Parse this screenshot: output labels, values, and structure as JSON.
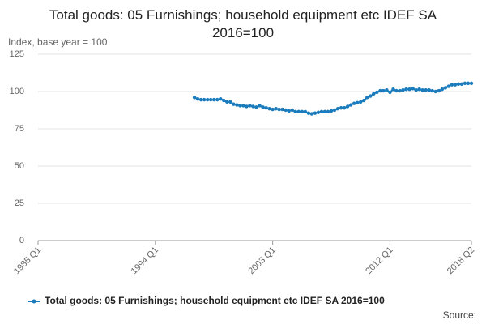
{
  "chart_data": {
    "type": "line",
    "title": "Total goods: 05 Furnishings; household equipment etc IDEF SA 2016=100",
    "y_label": "Index, base year = 100",
    "source": "Source:",
    "categories": [
      "1985 Q1",
      null,
      null,
      null,
      null,
      null,
      null,
      null,
      null,
      null,
      null,
      null,
      null,
      null,
      null,
      null,
      null,
      null,
      null,
      null,
      null,
      null,
      null,
      null,
      null,
      null,
      null,
      null,
      null,
      null,
      null,
      null,
      null,
      null,
      null,
      null,
      "1994 Q1",
      null,
      null,
      null,
      null,
      null,
      null,
      null,
      null,
      null,
      null,
      null,
      null,
      null,
      null,
      null,
      null,
      null,
      null,
      null,
      null,
      null,
      null,
      null,
      null,
      null,
      null,
      null,
      null,
      null,
      null,
      null,
      null,
      null,
      null,
      null,
      "2003 Q1",
      null,
      null,
      null,
      null,
      null,
      null,
      null,
      null,
      null,
      null,
      null,
      null,
      null,
      null,
      null,
      null,
      null,
      null,
      null,
      null,
      null,
      null,
      null,
      null,
      null,
      null,
      null,
      null,
      null,
      null,
      null,
      null,
      null,
      null,
      null,
      "2012 Q1",
      null,
      null,
      null,
      null,
      null,
      null,
      null,
      null,
      null,
      null,
      null,
      null,
      null,
      null,
      null,
      null,
      null,
      null,
      null,
      null,
      null,
      null,
      null,
      null,
      "2018 Q2"
    ],
    "series": [
      {
        "name": "Total goods: 05 Furnishings; household equipment etc IDEF SA 2016=100",
        "color": "#1a7bbd",
        "values": [
          null,
          null,
          null,
          null,
          null,
          null,
          null,
          null,
          null,
          null,
          null,
          null,
          null,
          null,
          null,
          null,
          null,
          null,
          null,
          null,
          null,
          null,
          null,
          null,
          null,
          null,
          null,
          null,
          null,
          null,
          null,
          null,
          null,
          null,
          null,
          null,
          null,
          null,
          null,
          null,
          null,
          null,
          null,
          null,
          null,
          null,
          null,
          null,
          96,
          95,
          94.5,
          94.5,
          94.5,
          94.5,
          94.5,
          94.5,
          95,
          94,
          93,
          93,
          91.5,
          91,
          90.5,
          90.5,
          90,
          90.5,
          90,
          89.5,
          90.5,
          89.5,
          89,
          88.5,
          88,
          88.5,
          88,
          88,
          87.5,
          87,
          87.5,
          86.5,
          86.5,
          86.5,
          86.5,
          85.5,
          85,
          85.5,
          86,
          86.5,
          86.5,
          86.5,
          87,
          87.5,
          88.5,
          89,
          89,
          90,
          91,
          92,
          92.5,
          93,
          94,
          96,
          97,
          98.5,
          99.5,
          100.5,
          100.5,
          101,
          99.5,
          101.5,
          100.5,
          100.5,
          101,
          101.5,
          101.5,
          102,
          101,
          101.5,
          101,
          101,
          101,
          100.5,
          100,
          100.5,
          101.5,
          102.5,
          103.5,
          104.5,
          104.5,
          105,
          105,
          105.5,
          105.5,
          105.5
        ]
      }
    ],
    "ylim": [
      0,
      125
    ],
    "yticks": [
      0,
      25,
      50,
      75,
      100,
      125
    ],
    "grid": true
  }
}
